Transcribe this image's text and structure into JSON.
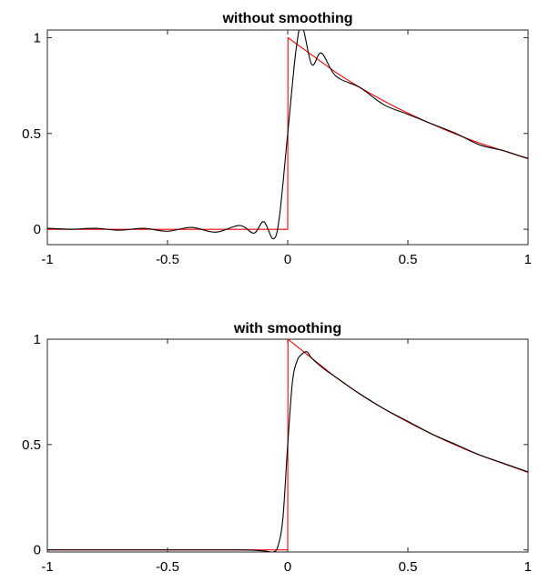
{
  "chart_data": [
    {
      "type": "line",
      "title": "without smoothing",
      "xlabel": "",
      "ylabel": "",
      "xlim": [
        -1,
        1
      ],
      "ylim": [
        -0.08,
        1.04
      ],
      "xticks": [
        "-1",
        "-0.5",
        "0",
        "0.5",
        "1"
      ],
      "yticks": [
        "0",
        "0.5",
        "1"
      ],
      "xtick_values": [
        -1,
        -0.5,
        0,
        0.5,
        1
      ],
      "ytick_values": [
        0,
        0.5,
        1
      ],
      "grid": false,
      "series": [
        {
          "color": "#ff0000",
          "x": [
            -1,
            -0.001,
            0,
            0.001,
            0.2,
            0.4,
            0.6,
            0.8,
            1
          ],
          "y": [
            0,
            0,
            0,
            1,
            0.819,
            0.67,
            0.549,
            0.449,
            0.368
          ]
        },
        {
          "color": "#000000",
          "x": [
            -1,
            -0.9,
            -0.8,
            -0.7,
            -0.6,
            -0.5,
            -0.4,
            -0.3,
            -0.2,
            -0.14,
            -0.1,
            -0.06,
            -0.035,
            0,
            0.035,
            0.06,
            0.1,
            0.14,
            0.2,
            0.3,
            0.4,
            0.5,
            0.6,
            0.7,
            0.8,
            0.9,
            1
          ],
          "y": [
            0.005,
            0.0,
            0.005,
            -0.005,
            0.005,
            -0.01,
            0.01,
            -0.015,
            0.02,
            -0.02,
            0.04,
            -0.05,
            0.06,
            0.5,
            0.94,
            1.06,
            0.86,
            0.92,
            0.8,
            0.74,
            0.65,
            0.6,
            0.55,
            0.5,
            0.44,
            0.41,
            0.37
          ]
        }
      ]
    },
    {
      "type": "line",
      "title": "with smoothing",
      "xlabel": "",
      "ylabel": "",
      "xlim": [
        -1,
        1
      ],
      "ylim": [
        -0.01,
        1.0
      ],
      "xticks": [
        "-1",
        "-0.5",
        "0",
        "0.5",
        "1"
      ],
      "yticks": [
        "0",
        "0.5",
        "1"
      ],
      "xtick_values": [
        -1,
        -0.5,
        0,
        0.5,
        1
      ],
      "ytick_values": [
        0,
        0.5,
        1
      ],
      "grid": false,
      "series": [
        {
          "color": "#ff0000",
          "x": [
            -1,
            -0.001,
            0,
            0.001,
            0.2,
            0.4,
            0.6,
            0.8,
            1
          ],
          "y": [
            0,
            0,
            0,
            1,
            0.819,
            0.67,
            0.549,
            0.449,
            0.368
          ]
        },
        {
          "color": "#000000",
          "x": [
            -1,
            -0.5,
            -0.2,
            -0.1,
            -0.06,
            -0.04,
            -0.02,
            0,
            0.02,
            0.04,
            0.06,
            0.08,
            0.1,
            0.15,
            0.2,
            0.3,
            0.4,
            0.5,
            0.6,
            0.7,
            0.8,
            0.9,
            1
          ],
          "y": [
            0,
            0,
            0,
            -0.005,
            -0.01,
            0.02,
            0.15,
            0.5,
            0.8,
            0.9,
            0.93,
            0.94,
            0.91,
            0.86,
            0.82,
            0.74,
            0.67,
            0.61,
            0.55,
            0.5,
            0.45,
            0.41,
            0.37
          ]
        }
      ]
    }
  ]
}
